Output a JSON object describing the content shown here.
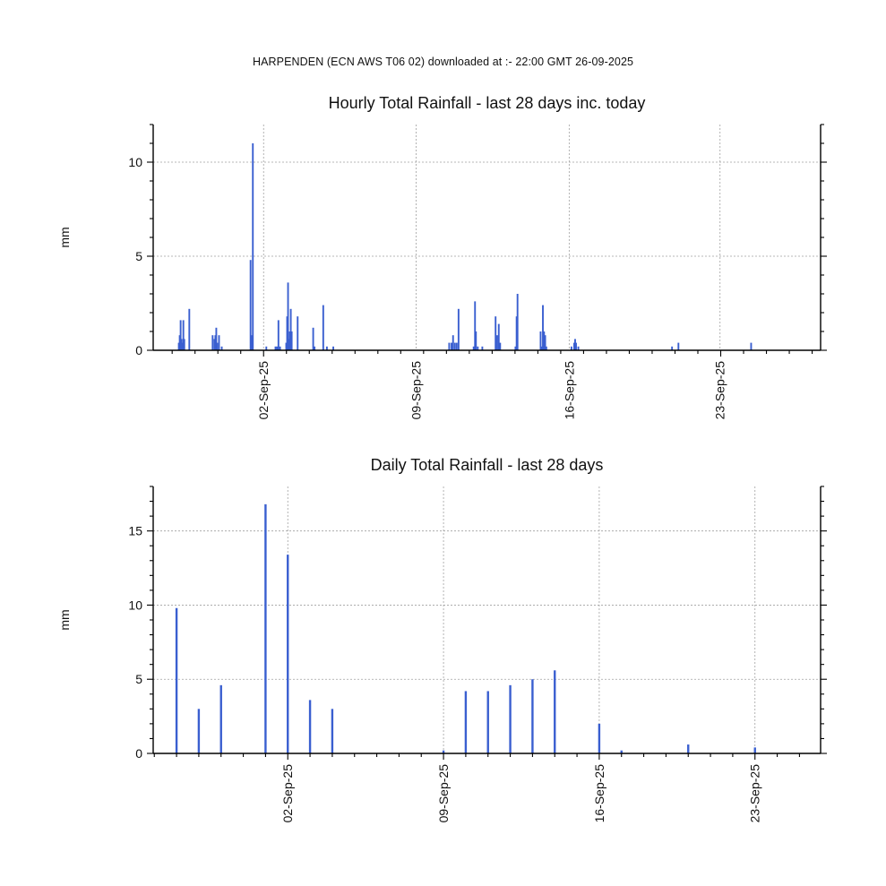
{
  "header": {
    "text": "HARPENDEN (ECN AWS T06 02) downloaded at :- 22:00 GMT 26-09-2025"
  },
  "colors": {
    "bar": "#3a5fd0",
    "axis": "#000000",
    "grid": "#a0a0a0"
  },
  "chart_data": [
    {
      "type": "bar",
      "title": "Hourly Total Rainfall - last 28 days inc. today",
      "xlabel": "",
      "ylabel": "mm",
      "x_unit": "days since 29-Aug-25 00:00",
      "xlim": [
        0,
        29.2
      ],
      "ylim": [
        0,
        12
      ],
      "yticks": [
        0,
        5,
        10
      ],
      "xticks": [
        {
          "label": "02-Sep-25",
          "x": 4.83
        },
        {
          "label": "09-Sep-25",
          "x": 11.5
        },
        {
          "label": "16-Sep-25",
          "x": 18.2
        },
        {
          "label": "23-Sep-25",
          "x": 24.8
        }
      ],
      "grid": true,
      "legend": "none",
      "points": [
        {
          "x": 1.12,
          "y": 0.4
        },
        {
          "x": 1.16,
          "y": 0.8
        },
        {
          "x": 1.2,
          "y": 1.6
        },
        {
          "x": 1.24,
          "y": 0.6
        },
        {
          "x": 1.28,
          "y": 0.4
        },
        {
          "x": 1.32,
          "y": 1.6
        },
        {
          "x": 1.36,
          "y": 0.6
        },
        {
          "x": 1.58,
          "y": 2.2
        },
        {
          "x": 2.6,
          "y": 0.8
        },
        {
          "x": 2.68,
          "y": 0.6
        },
        {
          "x": 2.72,
          "y": 0.8
        },
        {
          "x": 2.76,
          "y": 1.2
        },
        {
          "x": 2.8,
          "y": 0.4
        },
        {
          "x": 2.88,
          "y": 0.8
        },
        {
          "x": 3.0,
          "y": 0.2
        },
        {
          "x": 4.26,
          "y": 4.8
        },
        {
          "x": 4.31,
          "y": 0.8
        },
        {
          "x": 4.36,
          "y": 11.0
        },
        {
          "x": 4.95,
          "y": 0.2
        },
        {
          "x": 5.35,
          "y": 0.2
        },
        {
          "x": 5.42,
          "y": 0.2
        },
        {
          "x": 5.48,
          "y": 1.6
        },
        {
          "x": 5.55,
          "y": 0.2
        },
        {
          "x": 5.82,
          "y": 0.4
        },
        {
          "x": 5.86,
          "y": 1.8
        },
        {
          "x": 5.9,
          "y": 3.6
        },
        {
          "x": 5.94,
          "y": 0.6
        },
        {
          "x": 5.98,
          "y": 1.0
        },
        {
          "x": 6.02,
          "y": 2.2
        },
        {
          "x": 6.06,
          "y": 1.0
        },
        {
          "x": 6.32,
          "y": 1.8
        },
        {
          "x": 7.0,
          "y": 1.2
        },
        {
          "x": 7.06,
          "y": 0.2
        },
        {
          "x": 7.44,
          "y": 2.4
        },
        {
          "x": 7.6,
          "y": 0.2
        },
        {
          "x": 7.88,
          "y": 0.2
        },
        {
          "x": 12.95,
          "y": 0.4
        },
        {
          "x": 13.05,
          "y": 0.4
        },
        {
          "x": 13.12,
          "y": 0.8
        },
        {
          "x": 13.2,
          "y": 0.4
        },
        {
          "x": 13.28,
          "y": 0.4
        },
        {
          "x": 13.36,
          "y": 2.2
        },
        {
          "x": 14.02,
          "y": 0.2
        },
        {
          "x": 14.08,
          "y": 2.6
        },
        {
          "x": 14.12,
          "y": 1.0
        },
        {
          "x": 14.2,
          "y": 0.2
        },
        {
          "x": 14.4,
          "y": 0.2
        },
        {
          "x": 14.98,
          "y": 1.8
        },
        {
          "x": 15.05,
          "y": 0.8
        },
        {
          "x": 15.12,
          "y": 1.4
        },
        {
          "x": 15.18,
          "y": 0.4
        },
        {
          "x": 15.85,
          "y": 0.2
        },
        {
          "x": 15.9,
          "y": 1.8
        },
        {
          "x": 15.94,
          "y": 3.0
        },
        {
          "x": 16.95,
          "y": 1.0
        },
        {
          "x": 17.0,
          "y": 0.2
        },
        {
          "x": 17.05,
          "y": 2.4
        },
        {
          "x": 17.1,
          "y": 1.0
        },
        {
          "x": 17.15,
          "y": 0.8
        },
        {
          "x": 17.2,
          "y": 0.2
        },
        {
          "x": 18.3,
          "y": 0.2
        },
        {
          "x": 18.42,
          "y": 0.4
        },
        {
          "x": 18.46,
          "y": 0.6
        },
        {
          "x": 18.5,
          "y": 0.4
        },
        {
          "x": 18.6,
          "y": 0.2
        },
        {
          "x": 22.7,
          "y": 0.2
        },
        {
          "x": 22.98,
          "y": 0.4
        },
        {
          "x": 26.16,
          "y": 0.4
        }
      ]
    },
    {
      "type": "bar",
      "title": "Daily Total Rainfall - last 28 days",
      "xlabel": "",
      "ylabel": "mm",
      "x_unit": "days since 29-Aug-25",
      "xlim": [
        -0.05,
        29.95
      ],
      "ylim": [
        0,
        18
      ],
      "yticks": [
        0,
        5,
        10,
        15
      ],
      "xticks": [
        {
          "label": "02-Sep-25",
          "x": 6
        },
        {
          "label": "09-Sep-25",
          "x": 13
        },
        {
          "label": "16-Sep-25",
          "x": 20
        },
        {
          "label": "23-Sep-25",
          "x": 27
        }
      ],
      "grid": true,
      "legend": "none",
      "points": [
        {
          "x": 1,
          "y": 9.8
        },
        {
          "x": 2,
          "y": 3.0
        },
        {
          "x": 3,
          "y": 4.6
        },
        {
          "x": 5,
          "y": 16.8
        },
        {
          "x": 6,
          "y": 13.4
        },
        {
          "x": 7,
          "y": 3.6
        },
        {
          "x": 8,
          "y": 3.0
        },
        {
          "x": 13,
          "y": 0.2
        },
        {
          "x": 14,
          "y": 4.2
        },
        {
          "x": 15,
          "y": 4.2
        },
        {
          "x": 16,
          "y": 4.6
        },
        {
          "x": 17,
          "y": 5.0
        },
        {
          "x": 18,
          "y": 5.6
        },
        {
          "x": 20,
          "y": 2.0
        },
        {
          "x": 21,
          "y": 0.2
        },
        {
          "x": 24,
          "y": 0.6
        },
        {
          "x": 27,
          "y": 0.4
        }
      ]
    }
  ]
}
